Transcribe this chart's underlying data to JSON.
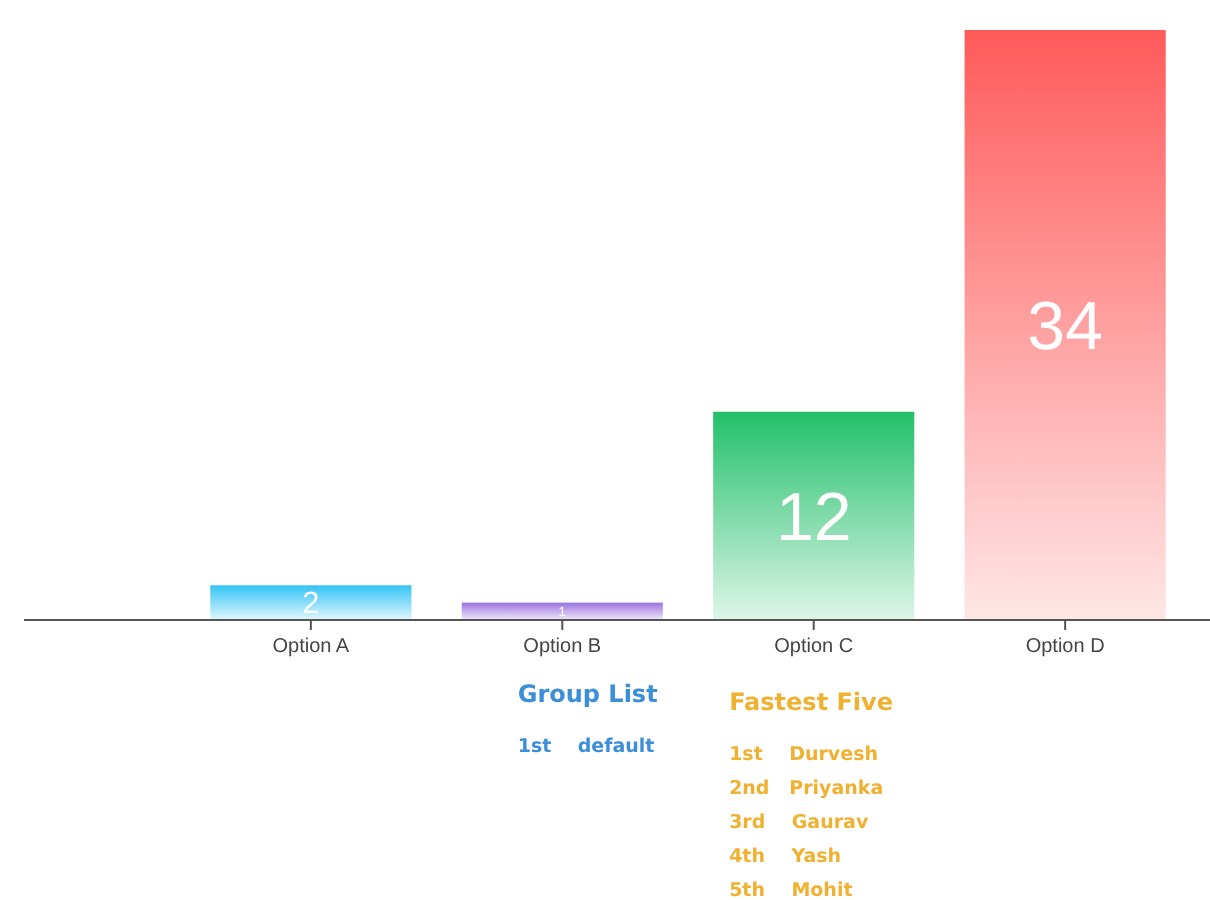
{
  "chart_data": {
    "type": "bar",
    "categories": [
      "Option A",
      "Option B",
      "Option C",
      "Option D"
    ],
    "values": [
      2,
      1,
      12,
      34
    ],
    "colors": [
      "#33c4f5",
      "#9b72e0",
      "#22c06a",
      "#ff5a5a"
    ],
    "data_labels": true,
    "annotations": [
      "Group List",
      "1st    default",
      "Fastest Five",
      "1st    Durvesh",
      "2nd   Priyanka",
      "3rd    Gaurav",
      "4th    Yash",
      "5th    Mohit"
    ]
  }
}
